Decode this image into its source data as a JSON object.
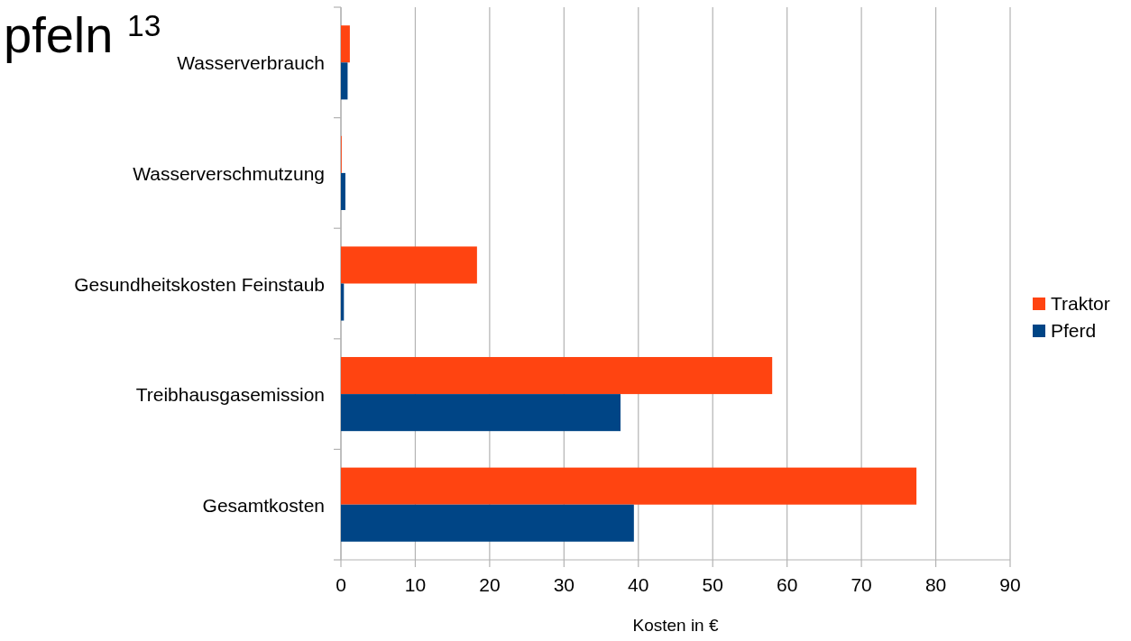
{
  "chart_data": {
    "type": "bar",
    "orientation": "horizontal",
    "title": "pfeln $^{13}$",
    "xlabel": "Kosten in €",
    "categories": [
      "Wasserverbrauch",
      "Wasserverschmutzung",
      "Gesundheitskosten Feinstaub",
      "Treibhausgasemission",
      "Gesamtkosten"
    ],
    "series": [
      {
        "name": "Traktor",
        "color": "#ff4411",
        "values": [
          1.2,
          0.1,
          18.3,
          58.0,
          77.4
        ]
      },
      {
        "name": "Pferd",
        "color": "#004586",
        "values": [
          0.9,
          0.6,
          0.4,
          37.6,
          39.4
        ]
      }
    ],
    "xlim": [
      0,
      90
    ],
    "xticks": [
      0,
      10,
      20,
      30,
      40,
      50,
      60,
      70,
      80,
      90
    ],
    "grid": "x",
    "legend": "right"
  }
}
